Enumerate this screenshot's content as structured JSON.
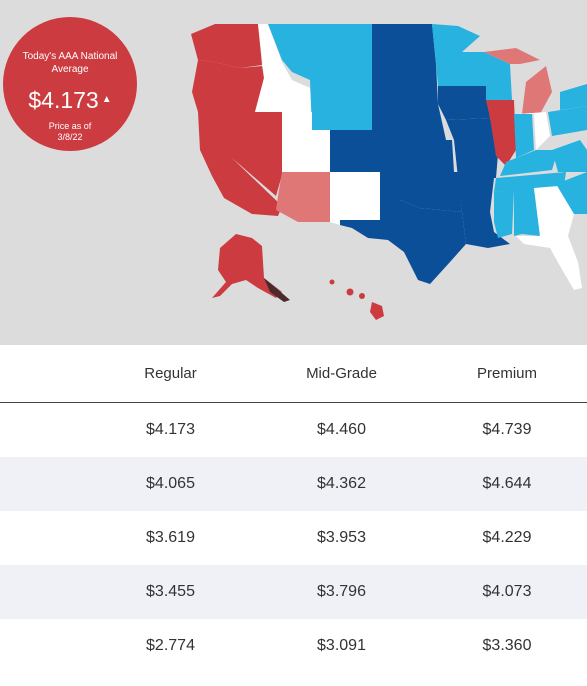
{
  "badge": {
    "title": "Today's AAA National Average",
    "price": "$4.173",
    "trend_icon": "up-triangle-icon",
    "as_of_label": "Price as of",
    "as_of_date": "3/8/22"
  },
  "map": {
    "color_scale": [
      "#ffffff",
      "#27b2e0",
      "#0b4f99",
      "#e07777",
      "#cc3b3f"
    ]
  },
  "table": {
    "headers": [
      "",
      "Regular",
      "Mid-Grade",
      "Premium"
    ],
    "rows": [
      [
        "",
        "$4.173",
        "$4.460",
        "$4.739"
      ],
      [
        "",
        "$4.065",
        "$4.362",
        "$4.644"
      ],
      [
        "",
        "$3.619",
        "$3.953",
        "$4.229"
      ],
      [
        "",
        "$3.455",
        "$3.796",
        "$4.073"
      ],
      [
        "",
        "$2.774",
        "$3.091",
        "$3.360"
      ]
    ]
  }
}
